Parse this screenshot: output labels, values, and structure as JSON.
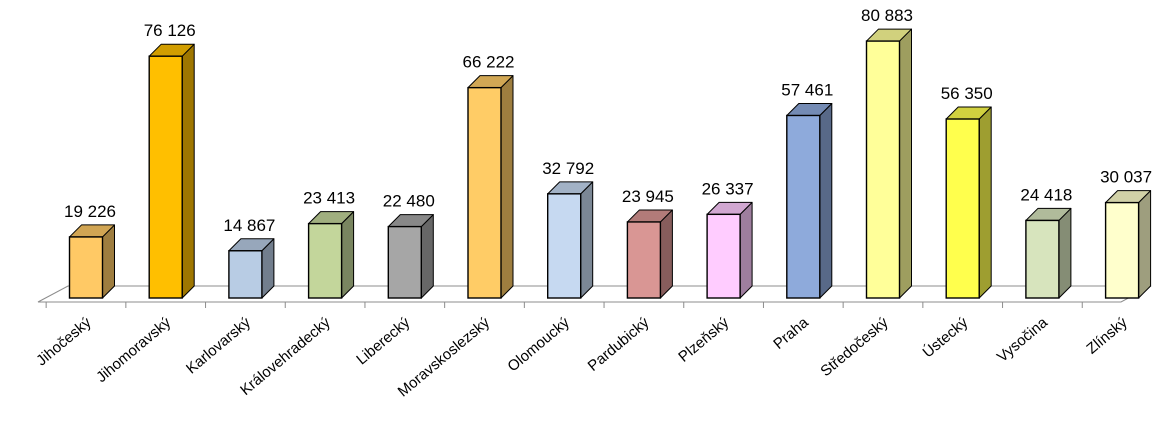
{
  "chart_data": {
    "type": "bar",
    "style": "3d-column",
    "title": "",
    "xlabel": "",
    "ylabel": "",
    "ylim": [
      0,
      85000
    ],
    "grid": false,
    "legend": "none",
    "categories": [
      "Jihočeský",
      "Jihomoravský",
      "Karlovarský",
      "Královehradecký",
      "Liberecký",
      "Moravskoslezský",
      "Olomoucký",
      "Pardubický",
      "Plzeňský",
      "Praha",
      "Středočeský",
      "Ústecký",
      "Vysočina",
      "Zlínský"
    ],
    "values": [
      19226,
      76126,
      14867,
      23413,
      22480,
      66222,
      32792,
      23945,
      26337,
      57461,
      80883,
      56350,
      24418,
      30037
    ],
    "data_labels": [
      "19 226",
      "76 126",
      "14 867",
      "23 413",
      "22 480",
      "66 222",
      "32 792",
      "23 945",
      "26 337",
      "57 461",
      "80 883",
      "56 350",
      "24 418",
      "30 037"
    ],
    "colors": [
      "#FFC965",
      "#FFBF00",
      "#B8CCE4",
      "#C3D69B",
      "#A6A6A6",
      "#FFCC66",
      "#C6D9F1",
      "#D99694",
      "#FFCCFF",
      "#8EAADB",
      "#FFFF99",
      "#FFFF4D",
      "#D7E4BD",
      "#FFFFCC"
    ]
  }
}
